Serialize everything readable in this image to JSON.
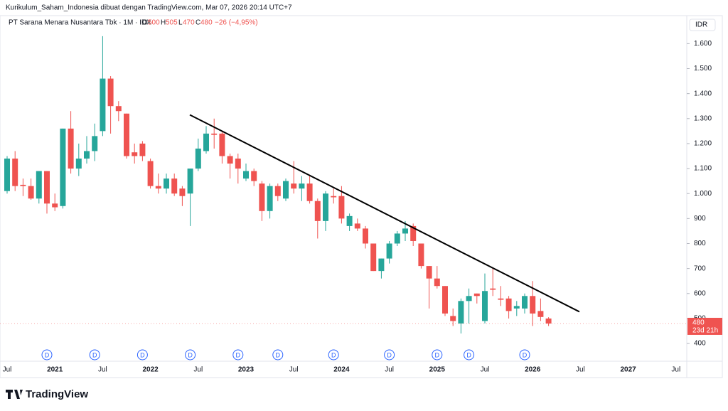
{
  "header": {
    "watermark": "Kurikulum_Saham_Indonesia dibuat dengan TradingView.com, Mar 07, 2026 20:14 UTC+7",
    "symbol": "PT Sarana Menara Nusantara Tbk · 1M · IDX",
    "o_label": "O",
    "o": "500",
    "h_label": "H",
    "h": "505",
    "l_label": "L",
    "l": "470",
    "c_label": "C",
    "c": "480",
    "change": "−26 (−4,95%)",
    "currency": "IDR",
    "logo": "TradingView"
  },
  "chart_data": {
    "type": "candlestick",
    "x_labels": [
      "Jul",
      "2021",
      "Jul",
      "2022",
      "Jul",
      "2023",
      "Jul",
      "2024",
      "Jul",
      "2025",
      "Jul",
      "2026",
      "Jul",
      "2027",
      "Jul"
    ],
    "open": [
      1010,
      1140,
      1035,
      1030,
      980,
      1090,
      960,
      950,
      1260,
      1100,
      1140,
      1170,
      1250,
      1460,
      1350,
      1320,
      1165,
      1200,
      1130,
      1030,
      1020,
      1060,
      1020,
      1000,
      1100,
      1170,
      1240,
      1240,
      1150,
      1140,
      1060,
      1090,
      1040,
      930,
      1030,
      980,
      1040,
      1020,
      1040,
      970,
      890,
      990,
      990,
      870,
      880,
      860,
      800,
      690,
      740,
      800,
      840,
      870,
      800,
      710,
      660,
      630,
      510,
      480,
      570,
      600,
      490,
      620,
      580,
      580,
      540,
      540,
      590,
      530,
      500
    ],
    "high": [
      1150,
      1170,
      1060,
      1060,
      1090,
      1090,
      1000,
      1260,
      1330,
      1200,
      1230,
      1280,
      1630,
      1470,
      1370,
      1320,
      1200,
      1210,
      1140,
      1080,
      1080,
      1080,
      1030,
      1100,
      1220,
      1270,
      1300,
      1250,
      1160,
      1160,
      1120,
      1100,
      1050,
      1040,
      1040,
      1060,
      1130,
      1070,
      1070,
      980,
      1010,
      1020,
      1030,
      920,
      900,
      870,
      800,
      740,
      810,
      850,
      890,
      880,
      800,
      710,
      710,
      630,
      540,
      580,
      620,
      600,
      680,
      700,
      630,
      590,
      570,
      600,
      650,
      580,
      505
    ],
    "low": [
      1000,
      1010,
      990,
      975,
      960,
      920,
      930,
      940,
      1080,
      1070,
      1120,
      1130,
      1230,
      1240,
      1290,
      1140,
      1120,
      1130,
      1020,
      1000,
      1000,
      990,
      950,
      870,
      1090,
      1160,
      1180,
      1120,
      1060,
      1040,
      1050,
      1030,
      890,
      900,
      970,
      970,
      1000,
      970,
      960,
      820,
      850,
      960,
      880,
      850,
      850,
      780,
      690,
      660,
      720,
      790,
      810,
      790,
      700,
      540,
      620,
      510,
      470,
      440,
      480,
      560,
      480,
      590,
      550,
      500,
      510,
      520,
      470,
      490,
      470
    ],
    "close": [
      1140,
      1030,
      1030,
      980,
      1090,
      960,
      945,
      1260,
      1100,
      1140,
      1170,
      1230,
      1460,
      1350,
      1330,
      1150,
      1150,
      1150,
      1030,
      1020,
      1060,
      1000,
      990,
      1100,
      1180,
      1240,
      1235,
      1150,
      1120,
      1100,
      1090,
      1050,
      930,
      1030,
      990,
      1050,
      1020,
      1040,
      970,
      890,
      1000,
      985,
      900,
      910,
      860,
      800,
      690,
      740,
      800,
      840,
      860,
      810,
      710,
      660,
      630,
      520,
      490,
      570,
      590,
      590,
      610,
      615,
      575,
      530,
      550,
      590,
      520,
      506,
      480
    ],
    "up_color": "#26a69a",
    "down_color": "#ef5350",
    "trendline": {
      "from": 1315,
      "to": 527,
      "color": "#000000"
    },
    "last_price": {
      "value": 480,
      "label": "480",
      "countdown": "23d 21h"
    },
    "dividend_label": "D",
    "ylim": [
      329,
      1712
    ],
    "yticks": [
      400,
      500,
      600,
      700,
      800,
      900,
      {
        "value": 1000,
        "label": "1.000"
      },
      {
        "value": 1100,
        "label": "1.100"
      },
      {
        "value": 1200,
        "label": "1.200"
      },
      {
        "value": 1300,
        "label": "1.300"
      },
      {
        "value": 1400,
        "label": "1.400"
      },
      {
        "value": 1500,
        "label": "1.500"
      },
      {
        "value": 1600,
        "label": "1.600"
      }
    ]
  }
}
